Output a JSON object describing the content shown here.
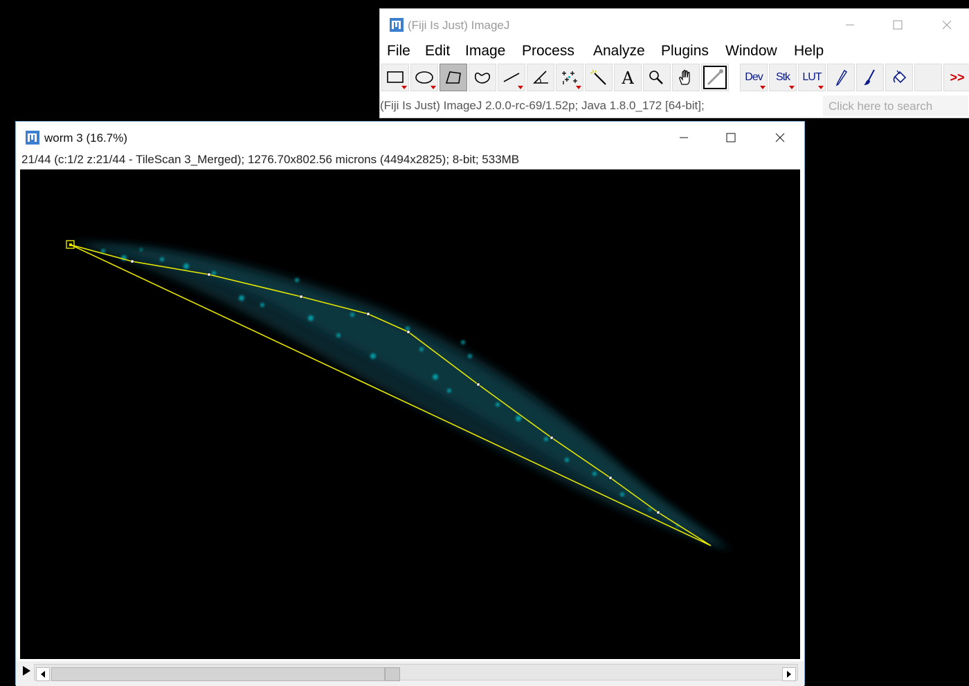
{
  "main_window": {
    "title": "(Fiji Is Just) ImageJ",
    "menu": [
      "File",
      "Edit",
      "Image",
      "Process",
      "Analyze",
      "Plugins",
      "Window",
      "Help"
    ],
    "tools": [
      {
        "name": "rectangle-tool-button",
        "icon": "rectangle-icon",
        "has_menu": true
      },
      {
        "name": "oval-tool-button",
        "icon": "oval-icon",
        "has_menu": true
      },
      {
        "name": "polygon-tool-button",
        "icon": "polygon-icon",
        "has_menu": false,
        "selected": true
      },
      {
        "name": "freehand-tool-button",
        "icon": "freehand-icon",
        "has_menu": false
      },
      {
        "name": "line-tool-button",
        "icon": "line-icon",
        "has_menu": true
      },
      {
        "name": "angle-tool-button",
        "icon": "angle-icon",
        "has_menu": false
      },
      {
        "name": "point-tool-button",
        "icon": "multipoint-icon",
        "has_menu": true
      },
      {
        "name": "wand-tool-button",
        "icon": "wand-icon",
        "has_menu": false
      },
      {
        "name": "text-tool-button",
        "icon": "text-icon",
        "has_menu": false
      },
      {
        "name": "magnifier-tool-button",
        "icon": "magnifier-icon",
        "has_menu": false
      },
      {
        "name": "hand-tool-button",
        "icon": "hand-icon",
        "has_menu": false
      },
      {
        "name": "color-picker-button",
        "icon": "dropper-icon",
        "has_menu": false
      }
    ],
    "menu_tools": [
      {
        "name": "dev-menu-button",
        "label": "Dev"
      },
      {
        "name": "stk-menu-button",
        "label": "Stk"
      },
      {
        "name": "lut-menu-button",
        "label": "LUT"
      }
    ],
    "extra_tools": [
      {
        "name": "pencil-tool-button",
        "icon": "pencil-icon"
      },
      {
        "name": "brush-tool-button",
        "icon": "brush-icon"
      },
      {
        "name": "flood-fill-tool-button",
        "icon": "paint-bucket-icon"
      }
    ],
    "more_tools_label": ">>",
    "status": "(Fiji Is Just) ImageJ 2.0.0-rc-69/1.52p; Java 1.8.0_172 [64-bit];",
    "search_placeholder": "Click here to search"
  },
  "image_window": {
    "title": "worm 3 (16.7%)",
    "info": "21/44 (c:1/2 z:21/44 - TileScan 3_Merged); 1276.70x802.56 microns (4494x2825); 8-bit; 533MB",
    "slice_index": 21,
    "slice_count": 44
  },
  "colors": {
    "roi": "#e6e600",
    "worm_signal": "#00c8d2",
    "selected_tool": "#bdbdbd",
    "menu_triangle": "#d00000"
  }
}
